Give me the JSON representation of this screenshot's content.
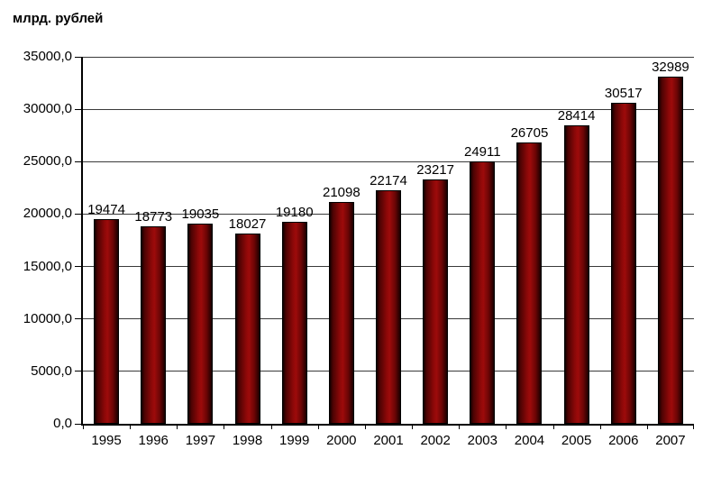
{
  "chart_data": {
    "type": "bar",
    "title": "млрд. рублей",
    "categories": [
      "1995",
      "1996",
      "1997",
      "1998",
      "1999",
      "2000",
      "2001",
      "2002",
      "2003",
      "2004",
      "2005",
      "2006",
      "2007"
    ],
    "values": [
      19474,
      18773,
      19035,
      18027,
      19180,
      21098,
      22174,
      23217,
      24911,
      26705,
      28414,
      30517,
      32989
    ],
    "value_labels": [
      "19474",
      "18773",
      "19035",
      "18027",
      "19180",
      "21098",
      "22174",
      "23217",
      "24911",
      "26705",
      "28414",
      "30517",
      "32989"
    ],
    "xlabel": "",
    "ylabel": "млрд. рублей",
    "ylim": [
      0,
      35000
    ],
    "y_tick_step": 5000,
    "y_tick_labels": [
      "0,0",
      "5000,0",
      "10000,0",
      "15000,0",
      "20000,0",
      "25000,0",
      "30000,0",
      "35000,0"
    ],
    "grid": true,
    "legend": "none",
    "colors": {
      "bar_highlight": "#9d0b0b",
      "bar_shadow": "#1a0000",
      "bar_border": "#000000",
      "gridline": "#3a3a3a",
      "axis": "#000000",
      "text": "#000000",
      "background": "#ffffff"
    }
  }
}
